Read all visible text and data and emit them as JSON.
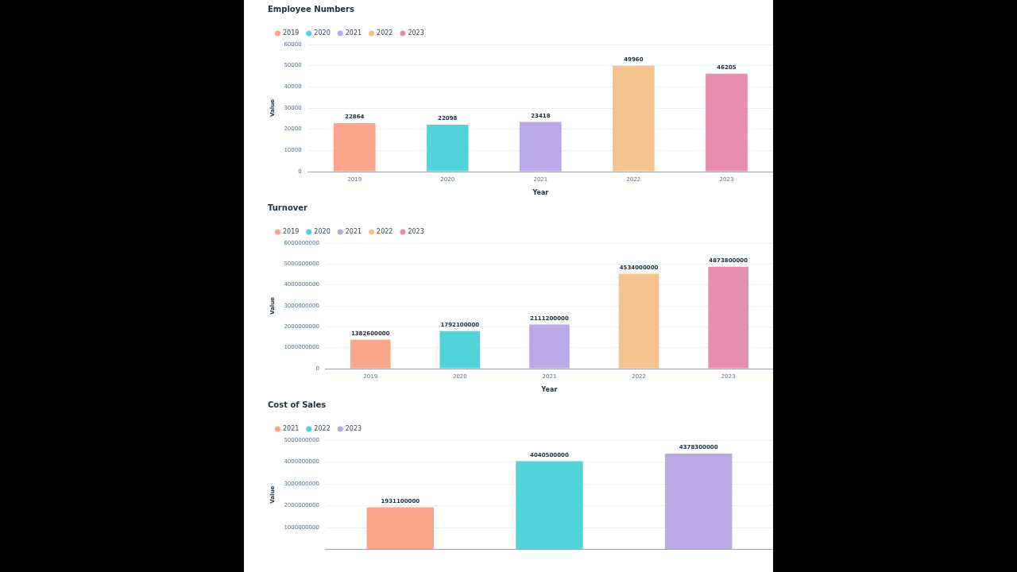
{
  "chart_data": [
    {
      "type": "bar",
      "title": "Employee Numbers",
      "xlabel": "Year",
      "ylabel": "Value",
      "categories": [
        "2019",
        "2020",
        "2021",
        "2022",
        "2023"
      ],
      "series": [
        {
          "name": "2019",
          "color": "#fba58c",
          "values": [
            22864,
            null,
            null,
            null,
            null
          ]
        },
        {
          "name": "2020",
          "color": "#52d3d9",
          "values": [
            null,
            22098,
            null,
            null,
            null
          ]
        },
        {
          "name": "2021",
          "color": "#bba8e6",
          "values": [
            null,
            null,
            23418,
            null,
            null
          ]
        },
        {
          "name": "2022",
          "color": "#f5c48e",
          "values": [
            null,
            null,
            null,
            49960,
            null
          ]
        },
        {
          "name": "2023",
          "color": "#e78eb0",
          "values": [
            null,
            null,
            null,
            null,
            46205
          ]
        }
      ],
      "ylim": [
        0,
        60000
      ],
      "yticks": [
        0,
        10000,
        20000,
        30000,
        40000,
        50000,
        60000
      ],
      "grid": "y",
      "legend": "top left",
      "data_labels": true
    },
    {
      "type": "bar",
      "title": "Turnover",
      "xlabel": "Year",
      "ylabel": "Value",
      "categories": [
        "2019",
        "2020",
        "2021",
        "2022",
        "2023"
      ],
      "series": [
        {
          "name": "2019",
          "color": "#fba58c",
          "values": [
            1382600000,
            null,
            null,
            null,
            null
          ]
        },
        {
          "name": "2020",
          "color": "#52d3d9",
          "values": [
            null,
            1792100000,
            null,
            null,
            null
          ]
        },
        {
          "name": "2021",
          "color": "#bba8e6",
          "values": [
            null,
            null,
            2111200000,
            null,
            null
          ]
        },
        {
          "name": "2022",
          "color": "#f5c48e",
          "values": [
            null,
            null,
            null,
            4534000000,
            null
          ]
        },
        {
          "name": "2023",
          "color": "#e78eb0",
          "values": [
            null,
            null,
            null,
            null,
            4873800000
          ]
        }
      ],
      "ylim": [
        0,
        6000000000
      ],
      "yticks": [
        0,
        1000000000,
        2000000000,
        3000000000,
        4000000000,
        5000000000,
        6000000000
      ],
      "grid": "y",
      "legend": "top left",
      "data_labels": true
    },
    {
      "type": "bar",
      "title": "Cost of Sales",
      "ylabel": "Value",
      "categories": [
        null,
        null,
        null
      ],
      "series": [
        {
          "name": "2021",
          "color": "#fba58c",
          "values": [
            1931100000,
            null,
            null
          ]
        },
        {
          "name": "2022",
          "color": "#52d3d9",
          "values": [
            null,
            4040500000,
            null
          ]
        },
        {
          "name": "2023",
          "color": "#bba8e6",
          "values": [
            null,
            null,
            4378300000
          ]
        }
      ],
      "ylim": [
        0,
        5000000000
      ],
      "yticks": [
        {
          "value": 0,
          "label": null
        },
        1000000000,
        2000000000,
        3000000000,
        4000000000,
        5000000000
      ],
      "grid": "y",
      "legend": "top left",
      "data_labels": true
    }
  ]
}
